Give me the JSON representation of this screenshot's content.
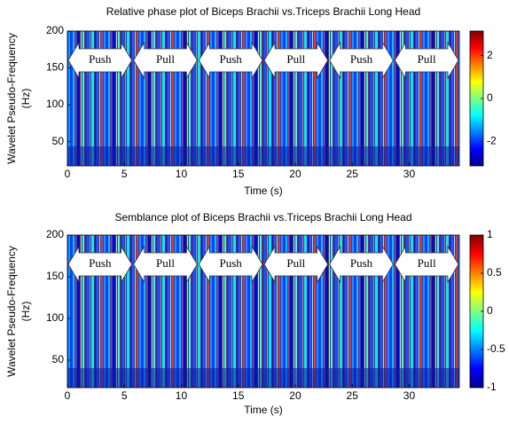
{
  "chart_data": [
    {
      "type": "heatmap",
      "title": "Relative phase plot of Biceps Brachii vs.Triceps Brachii Long Head",
      "xlabel": "Time (s)",
      "ylabel": [
        "Wavelet Pseudo-Frequency",
        "(Hz)"
      ],
      "xlim": [
        0,
        34.4
      ],
      "xticks": [
        0,
        5,
        10,
        15,
        20,
        25,
        30
      ],
      "ylim": [
        17,
        200
      ],
      "yticks": [
        50,
        100,
        150,
        200
      ],
      "colormap": "jet",
      "clim": [
        -3.14,
        3.14
      ],
      "cticks": [
        -2,
        0,
        2
      ],
      "annotations": [
        "Push",
        "Pull",
        "Push",
        "Pull",
        "Push",
        "Pull"
      ]
    },
    {
      "type": "heatmap",
      "title": "Semblance plot of Biceps Brachii vs.Triceps Brachii Long Head",
      "xlabel": "Time (s)",
      "ylabel": [
        "Wavelet Pseudo-Frequency",
        "(Hz)"
      ],
      "xlim": [
        0,
        34.4
      ],
      "xticks": [
        0,
        5,
        10,
        15,
        20,
        25,
        30
      ],
      "ylim": [
        17,
        200
      ],
      "yticks": [
        50,
        100,
        150,
        200
      ],
      "colormap": "jet",
      "clim": [
        -1,
        1
      ],
      "cticks": [
        -1,
        -0.5,
        0,
        0.5,
        1
      ],
      "annotations": [
        "Push",
        "Pull",
        "Push",
        "Pull",
        "Push",
        "Pull"
      ]
    }
  ]
}
